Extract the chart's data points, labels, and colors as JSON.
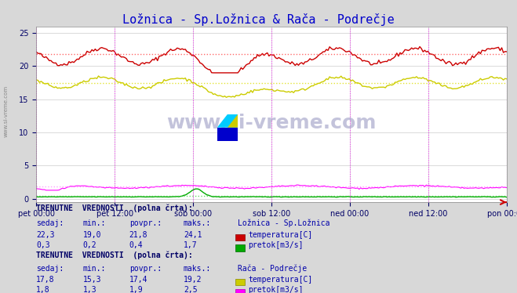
{
  "title": "Ložnica - Sp.Ložnica & Rača - Podrečje",
  "title_color": "#0000cc",
  "bg_color": "#d8d8d8",
  "plot_bg_color": "#ffffff",
  "grid_color": "#c0c0c0",
  "x_labels": [
    "pet 00:00",
    "pet 12:00",
    "sob 00:00",
    "sob 12:00",
    "ned 00:00",
    "ned 12:00",
    "pon 00:00"
  ],
  "x_ticks": [
    0,
    24,
    48,
    72,
    96,
    120,
    144
  ],
  "ylim": [
    -0.5,
    26
  ],
  "yticks": [
    0,
    5,
    10,
    15,
    20,
    25
  ],
  "n_points": 288,
  "loznica_temp_min": 19.0,
  "loznica_temp_max": 24.1,
  "loznica_temp_avg": 21.8,
  "loznica_temp_curr": 22.3,
  "loznica_pretok_min": 0.2,
  "loznica_pretok_max": 1.7,
  "loznica_pretok_avg": 0.4,
  "loznica_pretok_curr": 0.3,
  "raca_temp_min": 15.3,
  "raca_temp_max": 19.2,
  "raca_temp_avg": 17.4,
  "raca_temp_curr": 17.8,
  "raca_pretok_min": 1.3,
  "raca_pretok_max": 2.5,
  "raca_pretok_avg": 1.9,
  "raca_pretok_curr": 1.8,
  "color_loznica_temp": "#cc0000",
  "color_loznica_pretok": "#00aa00",
  "color_raca_temp": "#cccc00",
  "color_raca_pretok": "#ff00ff",
  "color_avg_loznica_temp": "#ff4444",
  "color_avg_raca_temp": "#dddd00",
  "color_avg_raca_pretok": "#ff88ff",
  "color_avg_loznica_pretok": "#44cc44",
  "watermark": "www.si-vreme.com",
  "watermark_color": "#aaaacc",
  "text_color": "#000066",
  "label_color": "#0000aa"
}
